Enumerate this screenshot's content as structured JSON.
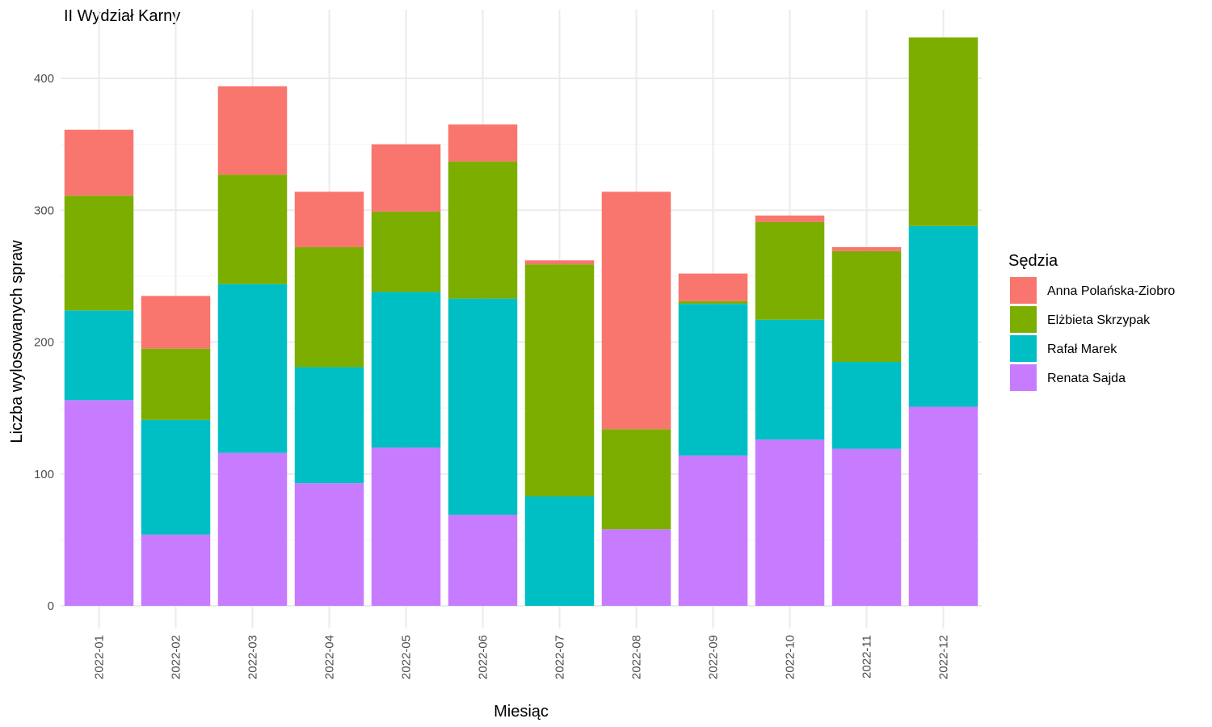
{
  "chart_data": {
    "type": "bar",
    "stacked": true,
    "title": "II Wydział Karny",
    "xlabel": "Miesiąc",
    "ylabel": "Liczba wylosowanych spraw",
    "ylim": [
      0,
      440
    ],
    "yticks": [
      0,
      100,
      200,
      300,
      400
    ],
    "grid": true,
    "legend_title": "Sędzia",
    "legend_position": "right",
    "categories": [
      "2022-01",
      "2022-02",
      "2022-03",
      "2022-04",
      "2022-05",
      "2022-06",
      "2022-07",
      "2022-08",
      "2022-09",
      "2022-10",
      "2022-11",
      "2022-12"
    ],
    "series": [
      {
        "name": "Anna Polańska-Ziobro",
        "color": "#F8766D",
        "values": [
          50,
          40,
          67,
          42,
          51,
          28,
          3,
          180,
          21,
          5,
          3,
          0
        ]
      },
      {
        "name": "Elżbieta Skrzypak",
        "color": "#7CAE00",
        "values": [
          87,
          54,
          83,
          91,
          61,
          104,
          176,
          76,
          2,
          74,
          84,
          143
        ]
      },
      {
        "name": "Rafał Marek",
        "color": "#00BFC4",
        "values": [
          68,
          87,
          128,
          88,
          118,
          164,
          83,
          0,
          115,
          91,
          66,
          137
        ]
      },
      {
        "name": "Renata Sajda",
        "color": "#C77CFF",
        "values": [
          156,
          54,
          116,
          93,
          120,
          69,
          0,
          58,
          114,
          126,
          119,
          151
        ]
      }
    ],
    "stack_order_bottom_to_top": [
      "Renata Sajda",
      "Rafał Marek",
      "Elżbieta Skrzypak",
      "Anna Polańska-Ziobro"
    ]
  }
}
